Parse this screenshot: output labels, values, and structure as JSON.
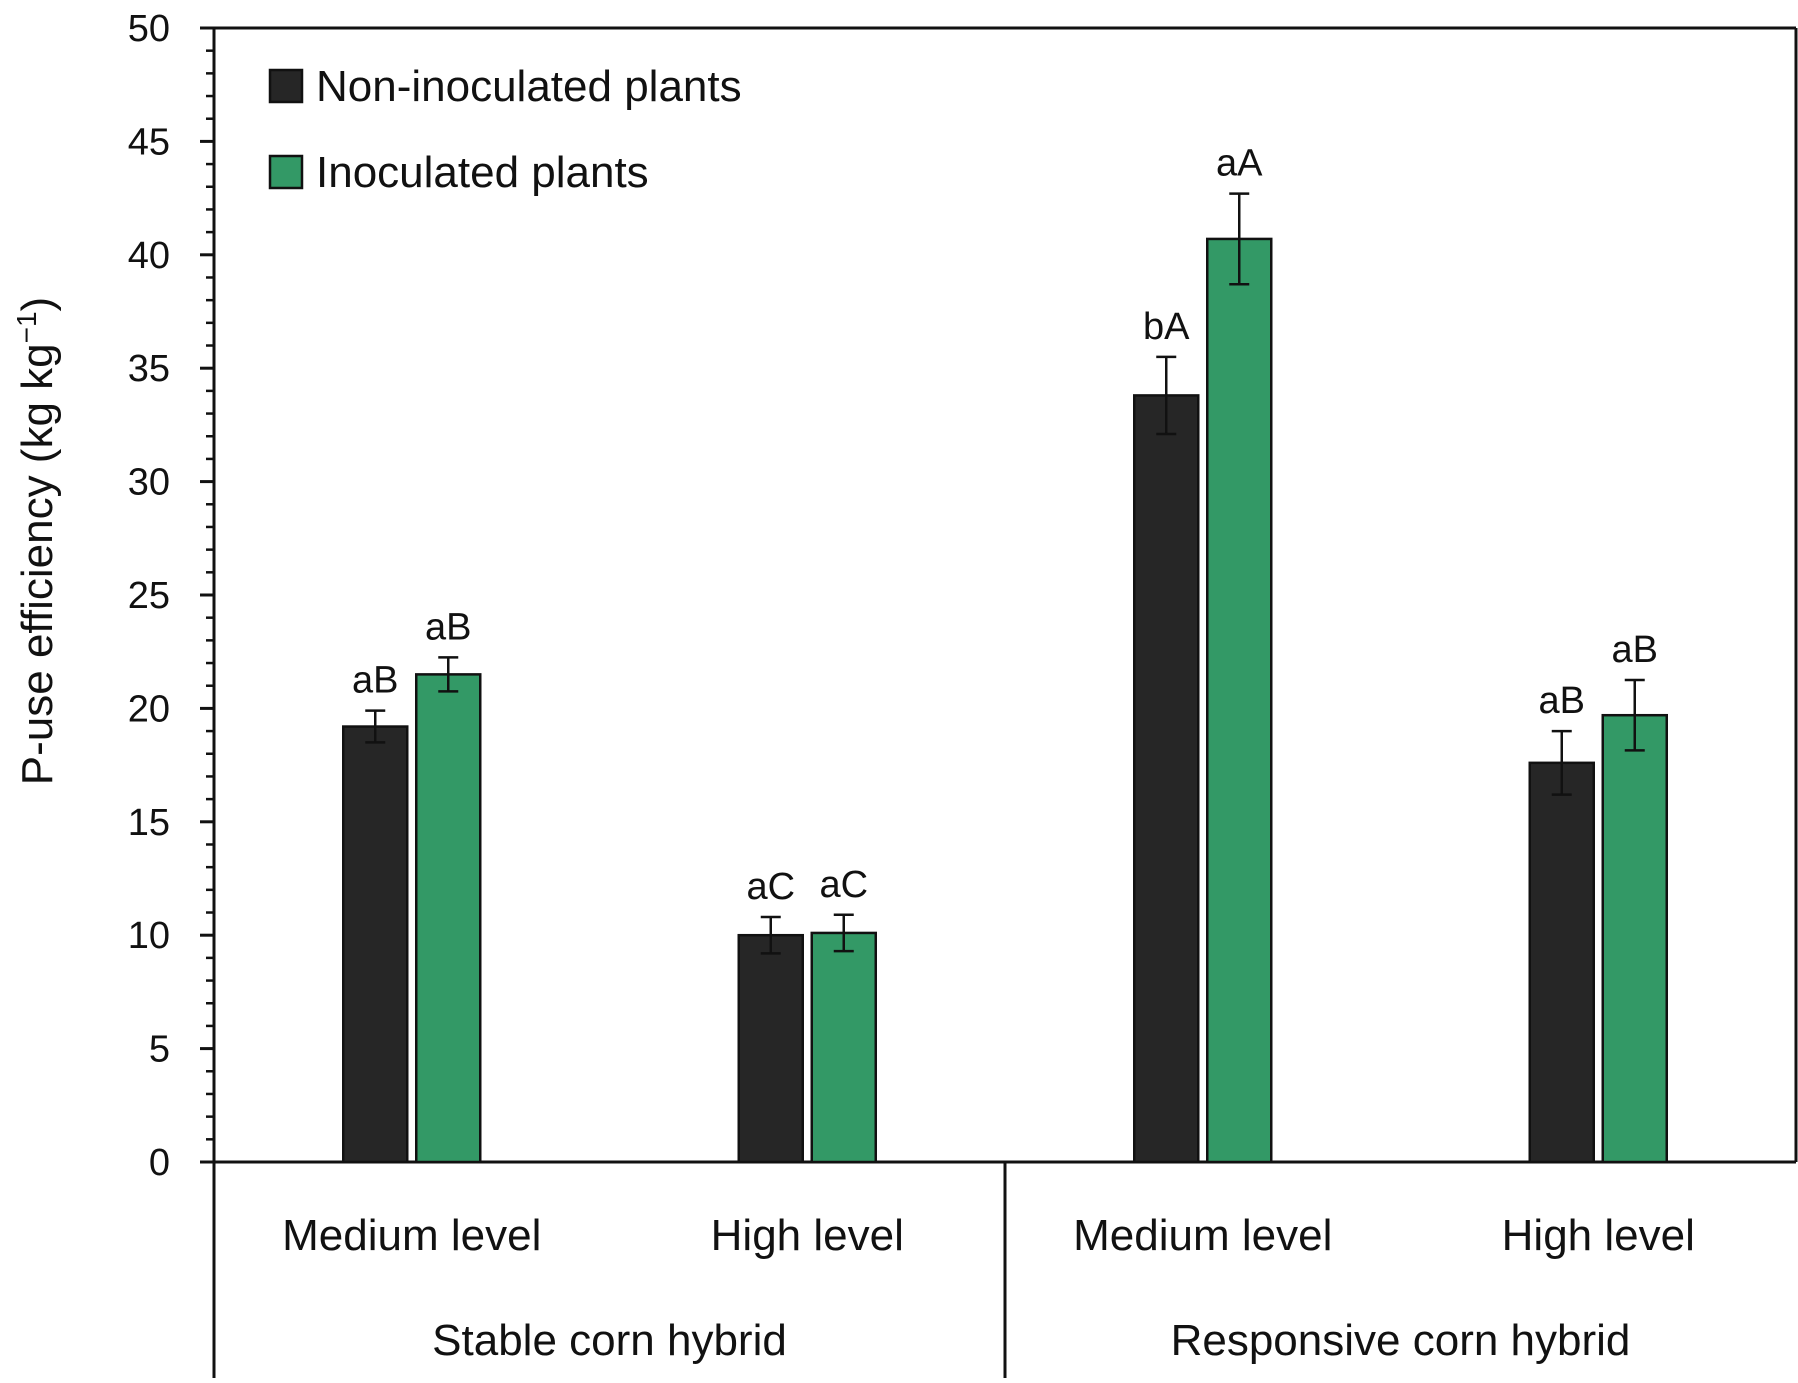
{
  "chart_data": {
    "type": "bar",
    "title": "",
    "ylabel": "P-use efficiency (kg kg⁻¹)",
    "ylabel_main": "P-use efficiency (kg kg",
    "ylabel_sup": "−1",
    "ylabel_close": ")",
    "ylim": [
      0,
      50
    ],
    "yticks": [
      0,
      5,
      10,
      15,
      20,
      25,
      30,
      35,
      40,
      45,
      50
    ],
    "minor_ticks": true,
    "grid": false,
    "legend_position": "top-left",
    "groups": [
      {
        "label": "Stable corn hybrid",
        "categories": [
          "Medium level",
          "High level"
        ]
      },
      {
        "label": "Responsive corn hybrid",
        "categories": [
          "Medium level",
          "High level"
        ]
      }
    ],
    "categories": [
      "Medium level",
      "High level",
      "Medium level",
      "High level"
    ],
    "series": [
      {
        "name": "Non-inoculated plants",
        "color": "#262626",
        "values": [
          19.2,
          10.0,
          33.8,
          17.6
        ],
        "errors": [
          0.7,
          0.8,
          1.7,
          1.4
        ],
        "labels": [
          "aB",
          "aC",
          "bA",
          "aB"
        ]
      },
      {
        "name": "Inoculated plants",
        "color": "#339966",
        "values": [
          21.5,
          10.1,
          40.7,
          19.7
        ],
        "errors": [
          0.75,
          0.8,
          2.0,
          1.55
        ],
        "labels": [
          "aB",
          "aC",
          "aA",
          "aB"
        ]
      }
    ]
  }
}
